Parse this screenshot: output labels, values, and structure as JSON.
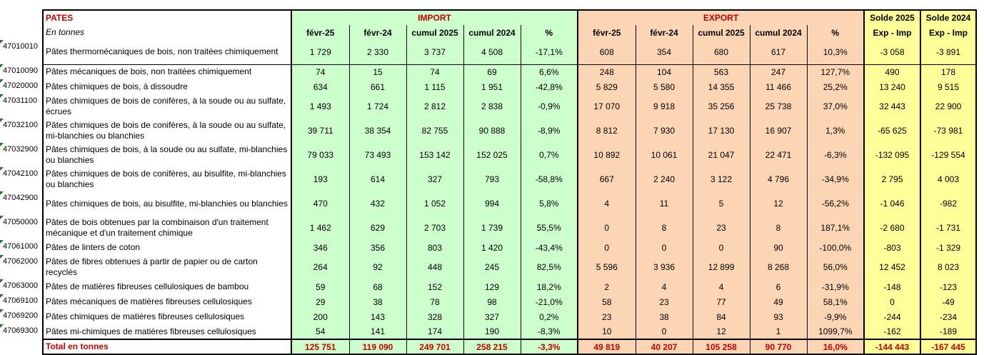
{
  "header": {
    "title": "PATES",
    "units": "En tonnes",
    "import_group": "IMPORT",
    "export_group": "EXPORT",
    "solde2025": "Solde 2025",
    "solde2024": "Solde 2024",
    "exp_imp": "Exp - Imp",
    "columns": [
      "févr-25",
      "févr-24",
      "cumul 2025",
      "cumul 2024",
      "%"
    ]
  },
  "rows": [
    {
      "code": "47010010",
      "label": "Pâtes thermomécaniques de bois, non traitées chimiquement",
      "imp": [
        "1 729",
        "2 330",
        "3 737",
        "4 508",
        "-17,1%"
      ],
      "exp": [
        "608",
        "354",
        "680",
        "617",
        "10,3%"
      ],
      "s25": "-3 058",
      "s24": "-3 891",
      "tall": true
    },
    {
      "code": "47010090",
      "label": "Pâtes mécaniques de bois, non traitées chimiquement",
      "imp": [
        "74",
        "15",
        "74",
        "69",
        "6,6%"
      ],
      "exp": [
        "248",
        "104",
        "563",
        "247",
        "127,7%"
      ],
      "s25": "490",
      "s24": "178",
      "tall": false
    },
    {
      "code": "47020000",
      "label": "Pâtes chimiques de bois, à dissoudre",
      "imp": [
        "634",
        "661",
        "1 115",
        "1 951",
        "-42,8%"
      ],
      "exp": [
        "5 829",
        "5 580",
        "14 355",
        "11 466",
        "25,2%"
      ],
      "s25": "13 240",
      "s24": "9 515",
      "tall": false
    },
    {
      "code": "47031100",
      "label": "Pâtes chimiques de bois de conifères, à la soude ou au sulfate, écrues",
      "imp": [
        "1 493",
        "1 724",
        "2 812",
        "2 838",
        "-0,9%"
      ],
      "exp": [
        "17 070",
        "9 918",
        "35 256",
        "25 738",
        "37,0%"
      ],
      "s25": "32 443",
      "s24": "22 900",
      "tall": true
    },
    {
      "code": "47032100",
      "label": "Pâtes chimiques de bois de conifères, à la soude ou au sulfate, mi-blanchies ou blanchies",
      "imp": [
        "39 711",
        "38 354",
        "82 755",
        "90 888",
        "-8,9%"
      ],
      "exp": [
        "8 812",
        "7 930",
        "17 130",
        "16 907",
        "1,3%"
      ],
      "s25": "-65 625",
      "s24": "-73 981",
      "tall": true
    },
    {
      "code": "47032900",
      "label": "Pâtes chimiques de bois, à la soude ou au sulfate, mi-blanchies ou blanchies",
      "imp": [
        "79 033",
        "73 493",
        "153 142",
        "152 025",
        "0,7%"
      ],
      "exp": [
        "10 892",
        "10 061",
        "21 047",
        "22 471",
        "-6,3%"
      ],
      "s25": "-132 095",
      "s24": "-129 554",
      "tall": true
    },
    {
      "code": "47042100",
      "label": "Pâtes chimiques de bois de conifères, au bisulfite, mi-blanchies ou blanchies",
      "imp": [
        "193",
        "614",
        "327",
        "793",
        "-58,8%"
      ],
      "exp": [
        "667",
        "2 240",
        "3 122",
        "4 796",
        "-34,9%"
      ],
      "s25": "2 795",
      "s24": "4 003",
      "tall": true
    },
    {
      "code": "47042900",
      "label": "Pâtes chimiques de bois, au bisulfite, mi-blanchies ou blanchies",
      "imp": [
        "470",
        "432",
        "1 052",
        "994",
        "5,8%"
      ],
      "exp": [
        "4",
        "11",
        "5",
        "12",
        "-56,2%"
      ],
      "s25": "-1 046",
      "s24": "-982",
      "tall": true
    },
    {
      "code": "47050000",
      "label": "Pâtes de bois obtenues par la combinaison d'un traitement mécanique et d'un traitement chimique",
      "imp": [
        "1 462",
        "629",
        "2 703",
        "1 739",
        "55,5%"
      ],
      "exp": [
        "0",
        "8",
        "23",
        "8",
        "187,1%"
      ],
      "s25": "-2 680",
      "s24": "-1 731",
      "tall": true
    },
    {
      "code": "47061000",
      "label": "Pâtes de linters de coton",
      "imp": [
        "346",
        "356",
        "803",
        "1 420",
        "-43,4%"
      ],
      "exp": [
        "0",
        "0",
        "0",
        "90",
        "-100,0%"
      ],
      "s25": "-803",
      "s24": "-1 329",
      "tall": false
    },
    {
      "code": "47062000",
      "label": "Pâtes de fibres obtenues à partir de papier ou de carton recyclés",
      "imp": [
        "264",
        "92",
        "448",
        "245",
        "82,5%"
      ],
      "exp": [
        "5 596",
        "3 936",
        "12 899",
        "8 268",
        "56,0%"
      ],
      "s25": "12 452",
      "s24": "8 023",
      "tall": true
    },
    {
      "code": "47063000",
      "label": "Pâtes de matières fibreuses cellulosiques de bambou",
      "imp": [
        "59",
        "68",
        "152",
        "129",
        "18,2%"
      ],
      "exp": [
        "2",
        "4",
        "4",
        "6",
        "-31,9%"
      ],
      "s25": "-148",
      "s24": "-123",
      "tall": false
    },
    {
      "code": "47069100",
      "label": "Pâtes mécaniques de matières fibreuses cellulosiques",
      "imp": [
        "29",
        "38",
        "78",
        "98",
        "-21,0%"
      ],
      "exp": [
        "58",
        "23",
        "77",
        "49",
        "58,1%"
      ],
      "s25": "0",
      "s24": "-49",
      "tall": false
    },
    {
      "code": "47069200",
      "label": "Pâtes chimiques de matières fibreuses cellulosiques",
      "imp": [
        "200",
        "143",
        "328",
        "327",
        "0,2%"
      ],
      "exp": [
        "23",
        "38",
        "84",
        "93",
        "-9,9%"
      ],
      "s25": "-244",
      "s24": "-234",
      "tall": false
    },
    {
      "code": "47069300",
      "label": "Pâtes mi-chimiques de matières fibreuses cellulosiques",
      "imp": [
        "54",
        "141",
        "174",
        "190",
        "-8,3%"
      ],
      "exp": [
        "10",
        "0",
        "12",
        "1",
        "1099,7%"
      ],
      "s25": "-162",
      "s24": "-189",
      "tall": false
    }
  ],
  "total": {
    "label": "Total en tonnes",
    "imp": [
      "125 751",
      "119 090",
      "249 701",
      "258 215",
      "-3,3%"
    ],
    "exp": [
      "49 819",
      "40 207",
      "105 258",
      "90 770",
      "16,0%"
    ],
    "s25": "-144 443",
    "s24": "-167 445"
  }
}
